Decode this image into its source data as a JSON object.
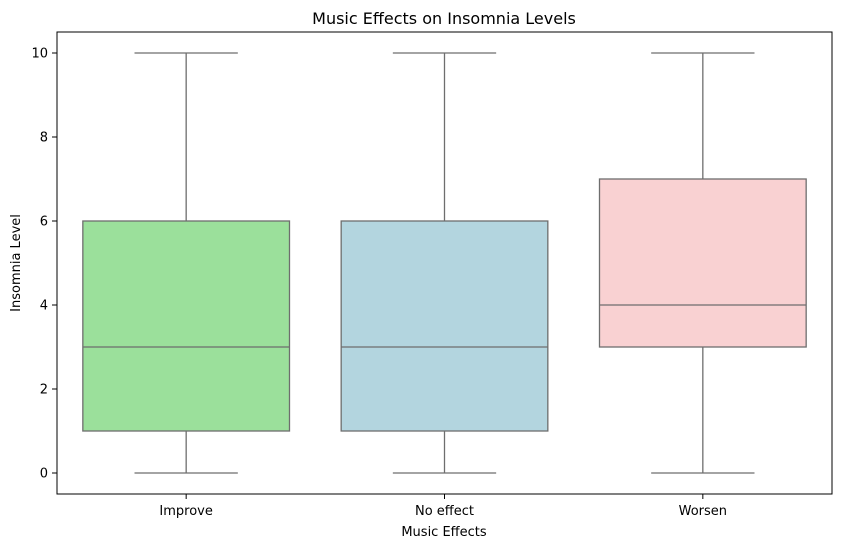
{
  "chart_data": {
    "type": "box",
    "title": "Music Effects on Insomnia Levels",
    "xlabel": "Music Effects",
    "ylabel": "Insomnia Level",
    "ylim": [
      -0.5,
      10.5
    ],
    "yticks": [
      0,
      2,
      4,
      6,
      8,
      10
    ],
    "grid": false,
    "categories": [
      "Improve",
      "No effect",
      "Worsen"
    ],
    "boxes": [
      {
        "category": "Improve",
        "whisker_low": 0,
        "q1": 1,
        "median": 3,
        "q3": 6,
        "whisker_high": 10,
        "color": "#9be09b"
      },
      {
        "category": "No effect",
        "whisker_low": 0,
        "q1": 1,
        "median": 3,
        "q3": 6,
        "whisker_high": 10,
        "color": "#b3d5df"
      },
      {
        "category": "Worsen",
        "whisker_low": 0,
        "q1": 3,
        "median": 4,
        "q3": 7,
        "whisker_high": 10,
        "color": "#f9d1d2"
      }
    ],
    "line_color": "#6e6e6e"
  }
}
